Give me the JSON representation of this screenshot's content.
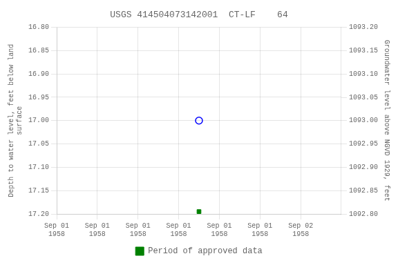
{
  "chart_data": {
    "type": "scatter",
    "title": "USGS 414504073142001  CT-LF    64",
    "ylabel": "Depth to water level, feet below land\nsurface",
    "y2label": "Groundwater level above NGVD 1929, feet",
    "xlim": [
      0,
      7
    ],
    "xticks": [
      {
        "value": 0,
        "label": "Sep 01\n1958"
      },
      {
        "value": 1,
        "label": "Sep 01\n1958"
      },
      {
        "value": 2,
        "label": "Sep 01\n1958"
      },
      {
        "value": 3,
        "label": "Sep 01\n1958"
      },
      {
        "value": 4,
        "label": "Sep 01\n1958"
      },
      {
        "value": 5,
        "label": "Sep 01\n1958"
      },
      {
        "value": 6,
        "label": "Sep 02\n1958"
      }
    ],
    "ylim": [
      17.2,
      16.8
    ],
    "yticks": [
      {
        "value": 16.8,
        "label": "16.80"
      },
      {
        "value": 16.85,
        "label": "16.85"
      },
      {
        "value": 16.9,
        "label": "16.90"
      },
      {
        "value": 16.95,
        "label": "16.95"
      },
      {
        "value": 17.0,
        "label": "17.00"
      },
      {
        "value": 17.05,
        "label": "17.05"
      },
      {
        "value": 17.1,
        "label": "17.10"
      },
      {
        "value": 17.15,
        "label": "17.15"
      },
      {
        "value": 17.2,
        "label": "17.20"
      }
    ],
    "y2lim": [
      1092.8,
      1093.2
    ],
    "y2ticks": [
      {
        "value": 1093.2,
        "label": "1093.20"
      },
      {
        "value": 1093.15,
        "label": "1093.15"
      },
      {
        "value": 1093.1,
        "label": "1093.10"
      },
      {
        "value": 1093.05,
        "label": "1093.05"
      },
      {
        "value": 1093.0,
        "label": "1093.00"
      },
      {
        "value": 1092.95,
        "label": "1092.95"
      },
      {
        "value": 1092.9,
        "label": "1092.90"
      },
      {
        "value": 1092.85,
        "label": "1092.85"
      },
      {
        "value": 1092.8,
        "label": "1092.80"
      }
    ],
    "series": [
      {
        "x": [
          3.5
        ],
        "values": [
          17.0
        ],
        "color": "blue",
        "marker": "open_circle"
      },
      {
        "name": "Period of approved data",
        "x": [
          3.5
        ],
        "values": [
          17.195
        ],
        "color": "#008000",
        "marker": "square"
      }
    ],
    "grid": true,
    "legend": "bottom"
  }
}
